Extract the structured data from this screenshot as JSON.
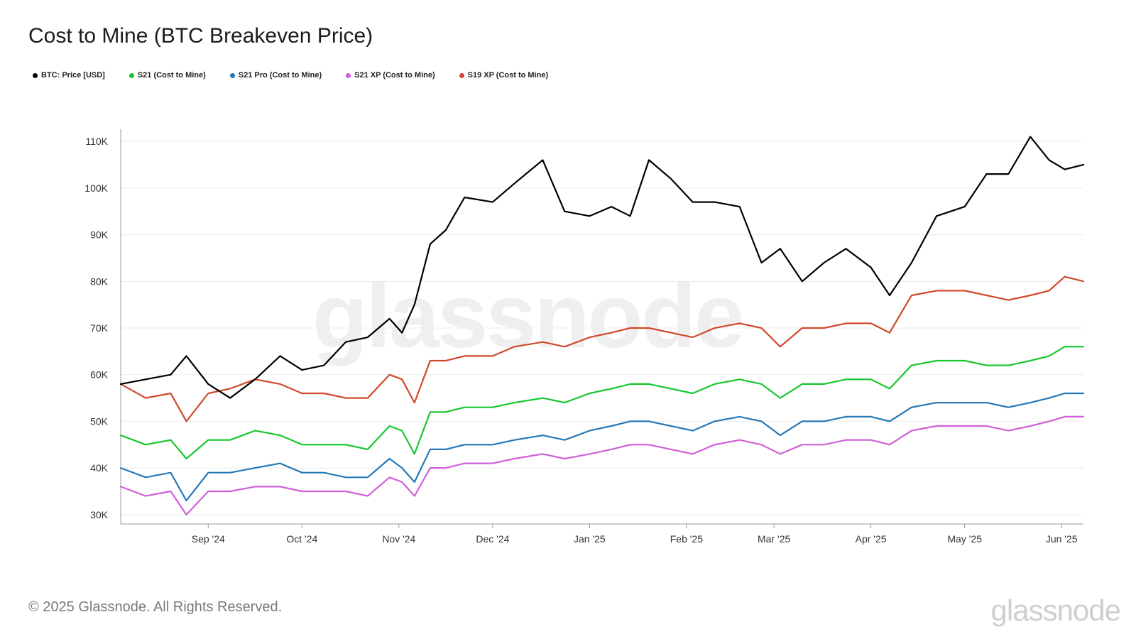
{
  "header": {
    "title": "Cost to Mine (BTC Breakeven Price)"
  },
  "footer": {
    "copyright": "© 2025 Glassnode. All Rights Reserved.",
    "brand": "glassnode"
  },
  "watermark": "glassnode",
  "legend": [
    {
      "label": "BTC: Price [USD]",
      "color": "#000000"
    },
    {
      "label": "S21 (Cost to Mine)",
      "color": "#16c72e"
    },
    {
      "label": "S21 Pro (Cost to Mine)",
      "color": "#2678b6"
    },
    {
      "label": "S21 XP (Cost to Mine)",
      "color": "#d05fd8"
    },
    {
      "label": "S19 XP (Cost to Mine)",
      "color": "#d0482b"
    }
  ],
  "chart_data": {
    "type": "line",
    "title": "Cost to Mine (BTC Breakeven Price)",
    "xlabel": "",
    "ylabel": "",
    "x_ticks": [
      "Sep '24",
      "Oct '24",
      "Nov '24",
      "Dec '24",
      "Jan '25",
      "Feb '25",
      "Mar '25",
      "Apr '25",
      "May '25",
      "Jun '25"
    ],
    "y_ticks": [
      "30K",
      "40K",
      "50K",
      "60K",
      "70K",
      "80K",
      "90K",
      "100K",
      "110K"
    ],
    "xlim": [
      "2024-08-04",
      "2025-06-08"
    ],
    "ylim": [
      28000,
      112000
    ],
    "grid": true,
    "legend_position": "top-left",
    "x": [
      "2024-08-04",
      "2024-08-12",
      "2024-08-20",
      "2024-08-25",
      "2024-09-01",
      "2024-09-08",
      "2024-09-16",
      "2024-09-24",
      "2024-10-01",
      "2024-10-08",
      "2024-10-15",
      "2024-10-22",
      "2024-10-29",
      "2024-11-02",
      "2024-11-06",
      "2024-11-11",
      "2024-11-16",
      "2024-11-22",
      "2024-12-01",
      "2024-12-08",
      "2024-12-17",
      "2024-12-24",
      "2025-01-01",
      "2025-01-08",
      "2025-01-14",
      "2025-01-20",
      "2025-01-27",
      "2025-02-03",
      "2025-02-10",
      "2025-02-18",
      "2025-02-25",
      "2025-03-03",
      "2025-03-10",
      "2025-03-17",
      "2025-03-24",
      "2025-04-01",
      "2025-04-07",
      "2025-04-14",
      "2025-04-22",
      "2025-05-01",
      "2025-05-08",
      "2025-05-15",
      "2025-05-22",
      "2025-05-28",
      "2025-06-02",
      "2025-06-08"
    ],
    "series": [
      {
        "name": "BTC: Price [USD]",
        "color": "#000000",
        "values": [
          58000,
          59000,
          60000,
          64000,
          58000,
          55000,
          59000,
          64000,
          61000,
          62000,
          67000,
          68000,
          72000,
          69000,
          75000,
          88000,
          91000,
          98000,
          97000,
          101000,
          106000,
          95000,
          94000,
          96000,
          94000,
          106000,
          102000,
          97000,
          97000,
          96000,
          84000,
          87000,
          80000,
          84000,
          87000,
          83000,
          77000,
          84000,
          94000,
          96000,
          103000,
          103000,
          111000,
          106000,
          104000,
          105000
        ]
      },
      {
        "name": "S21 (Cost to Mine)",
        "color": "#16c72e",
        "values": [
          47000,
          45000,
          46000,
          42000,
          46000,
          46000,
          48000,
          47000,
          45000,
          45000,
          45000,
          44000,
          49000,
          48000,
          43000,
          52000,
          52000,
          53000,
          53000,
          54000,
          55000,
          54000,
          56000,
          57000,
          58000,
          58000,
          57000,
          56000,
          58000,
          59000,
          58000,
          55000,
          58000,
          58000,
          59000,
          59000,
          57000,
          62000,
          63000,
          63000,
          62000,
          62000,
          63000,
          64000,
          66000,
          66000
        ]
      },
      {
        "name": "S21 Pro (Cost to Mine)",
        "color": "#2678b6",
        "values": [
          40000,
          38000,
          39000,
          33000,
          39000,
          39000,
          40000,
          41000,
          39000,
          39000,
          38000,
          38000,
          42000,
          40000,
          37000,
          44000,
          44000,
          45000,
          45000,
          46000,
          47000,
          46000,
          48000,
          49000,
          50000,
          50000,
          49000,
          48000,
          50000,
          51000,
          50000,
          47000,
          50000,
          50000,
          51000,
          51000,
          50000,
          53000,
          54000,
          54000,
          54000,
          53000,
          54000,
          55000,
          56000,
          56000
        ]
      },
      {
        "name": "S21 XP (Cost to Mine)",
        "color": "#d05fd8",
        "values": [
          36000,
          34000,
          35000,
          30000,
          35000,
          35000,
          36000,
          36000,
          35000,
          35000,
          35000,
          34000,
          38000,
          37000,
          34000,
          40000,
          40000,
          41000,
          41000,
          42000,
          43000,
          42000,
          43000,
          44000,
          45000,
          45000,
          44000,
          43000,
          45000,
          46000,
          45000,
          43000,
          45000,
          45000,
          46000,
          46000,
          45000,
          48000,
          49000,
          49000,
          49000,
          48000,
          49000,
          50000,
          51000,
          51000
        ]
      },
      {
        "name": "S19 XP (Cost to Mine)",
        "color": "#d0482b",
        "values": [
          58000,
          55000,
          56000,
          50000,
          56000,
          57000,
          59000,
          58000,
          56000,
          56000,
          55000,
          55000,
          60000,
          59000,
          54000,
          63000,
          63000,
          64000,
          64000,
          66000,
          67000,
          66000,
          68000,
          69000,
          70000,
          70000,
          69000,
          68000,
          70000,
          71000,
          70000,
          66000,
          70000,
          70000,
          71000,
          71000,
          69000,
          77000,
          78000,
          78000,
          77000,
          76000,
          77000,
          78000,
          81000,
          80000
        ]
      }
    ]
  }
}
